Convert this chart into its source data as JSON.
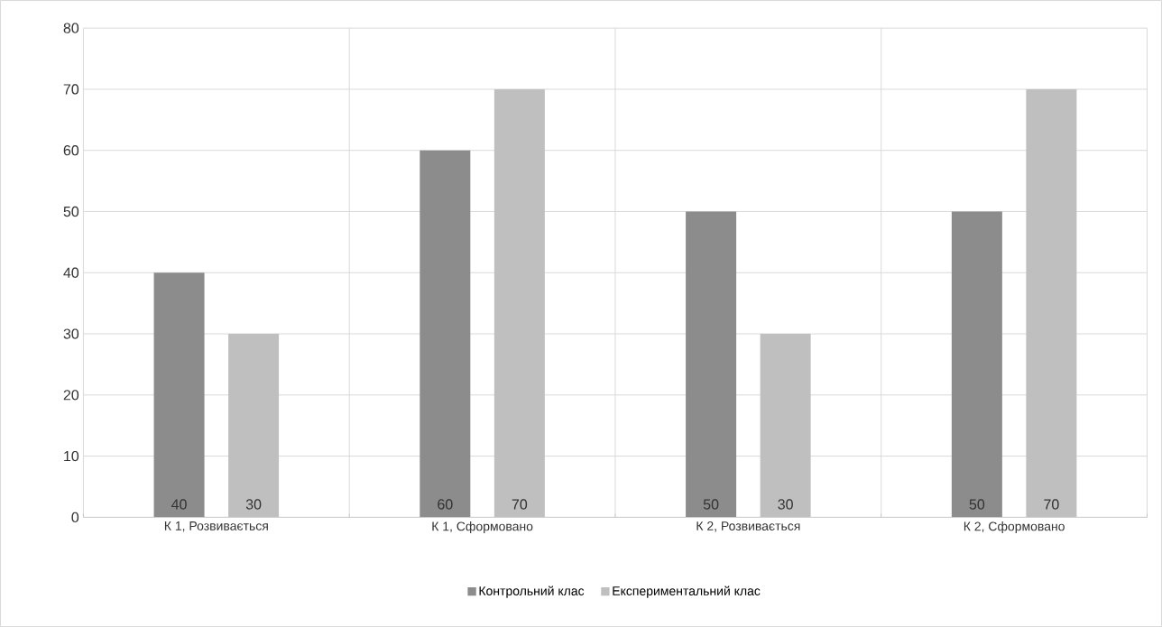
{
  "chart_data": {
    "type": "bar",
    "categories": [
      "К 1, Розвивається",
      "К 1, Сформовано",
      "К 2, Розвивається",
      "К 2, Сформовано"
    ],
    "series": [
      {
        "name": "Контрольний клас",
        "color": "#8c8c8c",
        "values": [
          40,
          60,
          50,
          50
        ]
      },
      {
        "name": "Експериментальний клас",
        "color": "#bfbfbf",
        "values": [
          30,
          70,
          30,
          70
        ]
      }
    ],
    "ylim": [
      0,
      80
    ],
    "yticks": [
      0,
      10,
      20,
      30,
      40,
      50,
      60,
      70,
      80
    ],
    "grid": true,
    "legend": "bottom",
    "data_labels": true
  }
}
